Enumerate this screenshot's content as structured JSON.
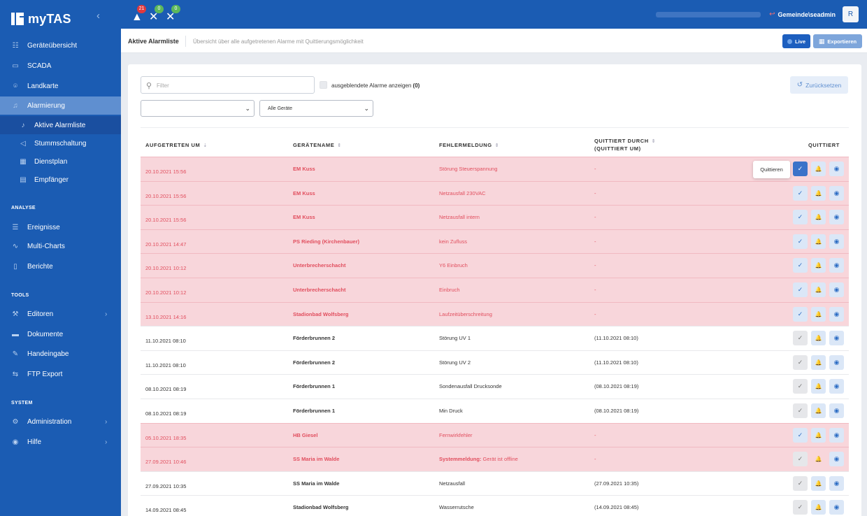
{
  "app": {
    "title": "myTAS"
  },
  "sidebar": {
    "items": [
      {
        "label": "Geräteübersicht",
        "icon": "grid-icon",
        "glyph": "☷"
      },
      {
        "label": "SCADA",
        "icon": "monitor-icon",
        "glyph": "▭"
      },
      {
        "label": "Landkarte",
        "icon": "map-pin-icon",
        "glyph": "⌾"
      },
      {
        "label": "Alarmierung",
        "icon": "bell-icon",
        "glyph": "♫"
      },
      {
        "label": "Aktive Alarmliste",
        "icon": "bell-icon",
        "glyph": "♪"
      },
      {
        "label": "Stummschaltung",
        "icon": "speaker-mute-icon",
        "glyph": "◁"
      },
      {
        "label": "Dienstplan",
        "icon": "calendar-icon",
        "glyph": "▦"
      },
      {
        "label": "Empfänger",
        "icon": "contact-icon",
        "glyph": "▤"
      },
      {
        "label": "Ereignisse",
        "icon": "list-icon",
        "glyph": "☰"
      },
      {
        "label": "Multi-Charts",
        "icon": "chart-line-icon",
        "glyph": "∿"
      },
      {
        "label": "Berichte",
        "icon": "file-icon",
        "glyph": "▯"
      },
      {
        "label": "Editoren",
        "icon": "wrench-icon",
        "glyph": "⚒"
      },
      {
        "label": "Dokumente",
        "icon": "folder-icon",
        "glyph": "▬"
      },
      {
        "label": "Handeingabe",
        "icon": "pencil-icon",
        "glyph": "✎"
      },
      {
        "label": "FTP Export",
        "icon": "shuffle-icon",
        "glyph": "⇆"
      },
      {
        "label": "Administration",
        "icon": "gear-icon",
        "glyph": "⚙"
      },
      {
        "label": "Hilfe",
        "icon": "help-icon",
        "glyph": "◉"
      }
    ],
    "sections": {
      "analyse": "ANALYSE",
      "tools": "TOOLS",
      "system": "SYSTEM"
    }
  },
  "topbar": {
    "alarms": [
      {
        "name": "warning-icon",
        "count": "21",
        "color": "#e0393e",
        "glyph": "▲"
      },
      {
        "name": "bell-off-icon",
        "count": "0",
        "color": "#5cb85c",
        "glyph": "✕"
      },
      {
        "name": "satellite-off-icon",
        "count": "0",
        "color": "#5cb85c",
        "glyph": "✕"
      }
    ],
    "user": {
      "name": "Gemeinde\\seadmin",
      "avatar": "R"
    }
  },
  "page": {
    "title": "Aktive Alarmliste",
    "description": "Übersicht über alle aufgetretenen Alarme mit Quittierungsmöglichkeit",
    "live": "Live",
    "export": "Exportieren"
  },
  "filters": {
    "placeholder": "Filter",
    "hidden_label": "ausgeblendete Alarme anzeigen",
    "hidden_count": "(0)",
    "reset": "Zurücksetzen",
    "select1": "",
    "select2": "Alle Geräte"
  },
  "table": {
    "headers": {
      "time": "AUFGETRETEN UM",
      "device": "GERÄTENAME",
      "error": "FEHLERMELDUNG",
      "ack_by_1": "QUITTIERT DURCH",
      "ack_by_2": "(QUITTIERT UM)",
      "ack": "QUITTIERT"
    },
    "tooltip": "Quittieren",
    "rows": [
      {
        "time": "20.10.2021 15:56",
        "device": "EM Kuss",
        "error_prefix": "",
        "error": "Störung Steuerspannung",
        "ack_by": "-",
        "alarm": true
      },
      {
        "time": "20.10.2021 15:56",
        "device": "EM Kuss",
        "error_prefix": "",
        "error": "Netzausfall 230VAC",
        "ack_by": "-",
        "alarm": true
      },
      {
        "time": "20.10.2021 15:56",
        "device": "EM Kuss",
        "error_prefix": "",
        "error": "Netzausfall intern",
        "ack_by": "-",
        "alarm": true
      },
      {
        "time": "20.10.2021 14:47",
        "device": "PS Rieding (Kirchenbauer)",
        "error_prefix": "",
        "error": "kein Zufluss",
        "ack_by": "-",
        "alarm": true
      },
      {
        "time": "20.10.2021 10:12",
        "device": "Unterbrecherschacht",
        "error_prefix": "",
        "error": "Y6 Einbruch",
        "ack_by": "-",
        "alarm": true
      },
      {
        "time": "20.10.2021 10:12",
        "device": "Unterbrecherschacht",
        "error_prefix": "",
        "error": "Einbruch",
        "ack_by": "-",
        "alarm": true
      },
      {
        "time": "13.10.2021 14:16",
        "device": "Stadionbad Wolfsberg",
        "error_prefix": "",
        "error": "Laufzeitüberschreitung",
        "ack_by": "-",
        "alarm": true
      },
      {
        "time": "11.10.2021 08:10",
        "device": "Förderbrunnen 2",
        "error_prefix": "",
        "error": "Störung UV 1",
        "ack_by": "(11.10.2021 08:10)",
        "alarm": false
      },
      {
        "time": "11.10.2021 08:10",
        "device": "Förderbrunnen 2",
        "error_prefix": "",
        "error": "Störung UV 2",
        "ack_by": "(11.10.2021 08:10)",
        "alarm": false
      },
      {
        "time": "08.10.2021 08:19",
        "device": "Förderbrunnen 1",
        "error_prefix": "",
        "error": "Sondenausfall Drucksonde",
        "ack_by": "(08.10.2021 08:19)",
        "alarm": false
      },
      {
        "time": "08.10.2021 08:19",
        "device": "Förderbrunnen 1",
        "error_prefix": "",
        "error": "Min Druck",
        "ack_by": "(08.10.2021 08:19)",
        "alarm": false
      },
      {
        "time": "05.10.2021 18:35",
        "device": "HB Giesel",
        "error_prefix": "",
        "error": "Fernwirkfehler",
        "ack_by": "-",
        "alarm": true
      },
      {
        "time": "27.09.2021 10:46",
        "device": "SS Maria im Walde",
        "error_prefix": "Systemmeldung:",
        "error": "Gerät ist offline",
        "ack_by": "-",
        "alarm": true
      },
      {
        "time": "27.09.2021 10:35",
        "device": "SS Maria im Walde",
        "error_prefix": "",
        "error": "Netzausfall",
        "ack_by": "(27.09.2021 10:35)",
        "alarm": false
      },
      {
        "time": "14.09.2021 08:45",
        "device": "Stadionbad Wolfsberg",
        "error_prefix": "",
        "error": "Wasserrutsche",
        "ack_by": "(14.09.2021 08:45)",
        "alarm": false
      }
    ]
  },
  "colors": {
    "sidebar": "#1b5cb3",
    "active": "#5f8fd0",
    "alarm_row": "#f8d6db",
    "alarm_text": "#e14e5e"
  }
}
